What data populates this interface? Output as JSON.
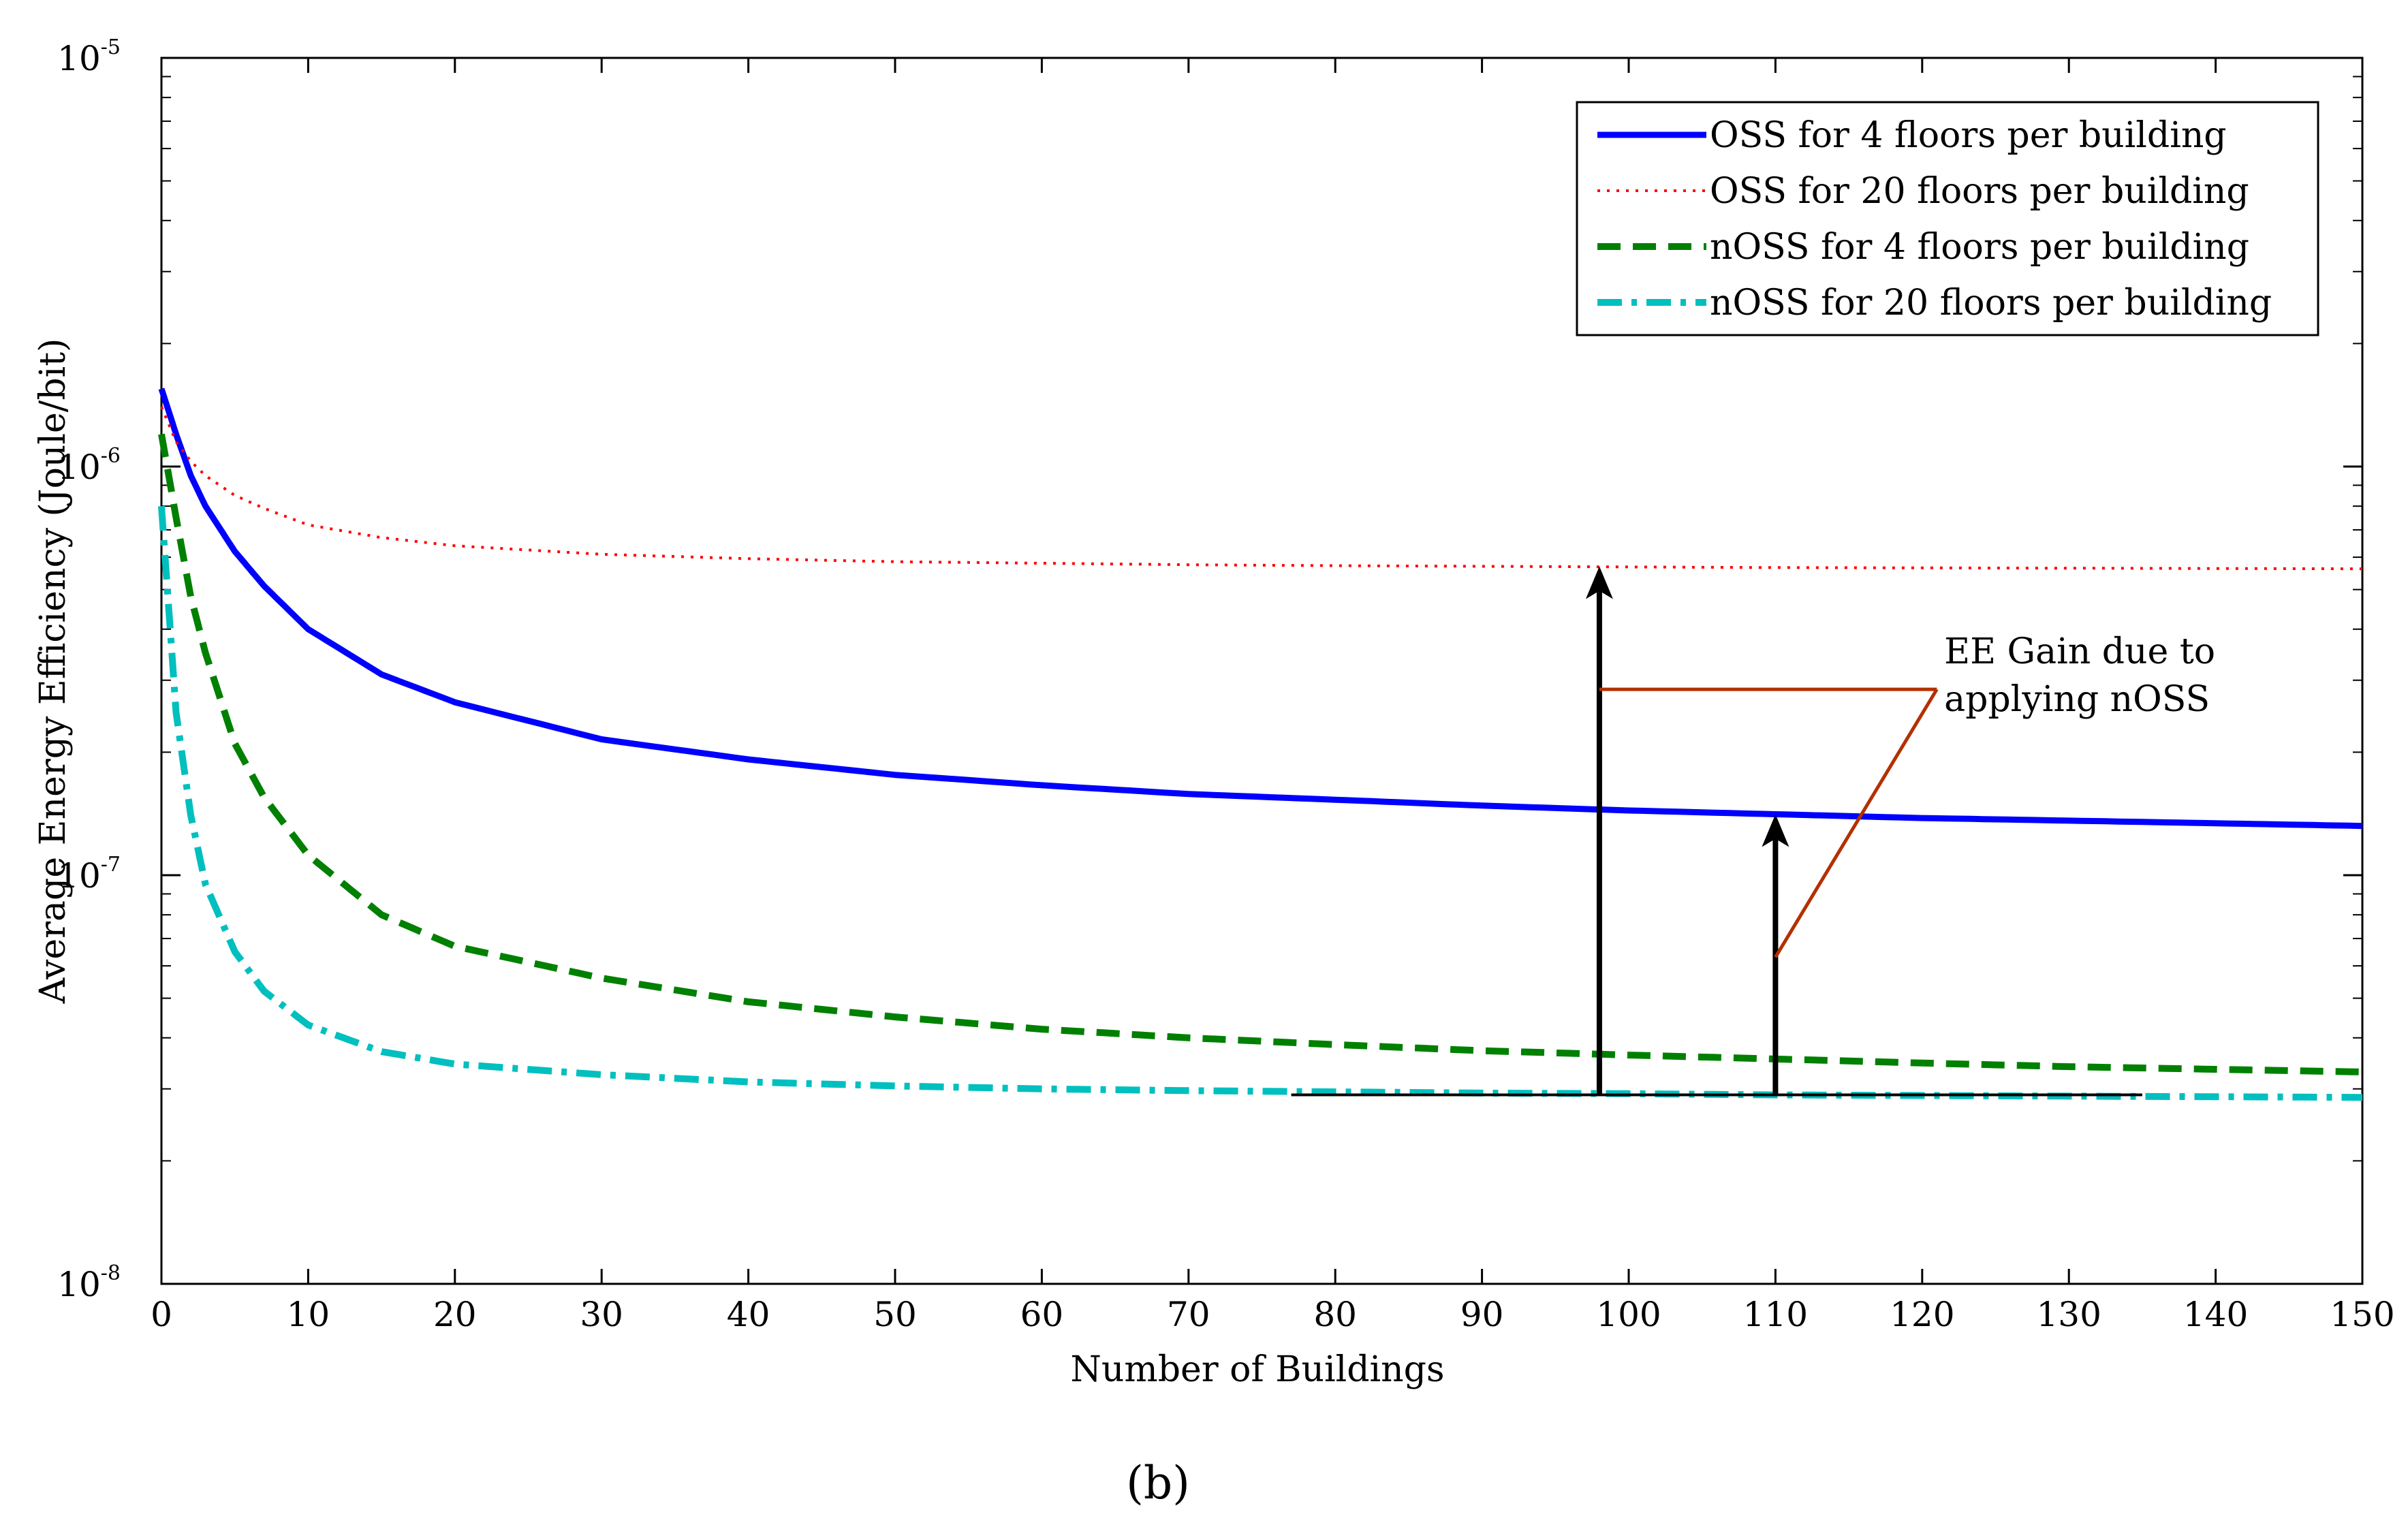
{
  "chart_data": {
    "type": "line",
    "title": "",
    "xlabel": "Number of Buildings",
    "ylabel": "Average Energy Efficiency (Joule/bit)",
    "yscale": "log",
    "xlim": [
      0,
      150
    ],
    "ylim": [
      1e-08,
      1e-05
    ],
    "x_ticks": [
      0,
      10,
      20,
      30,
      40,
      50,
      60,
      70,
      80,
      90,
      100,
      110,
      120,
      130,
      140,
      150
    ],
    "y_ticks": [
      {
        "value": 1e-08,
        "base": "10",
        "exp": "-8"
      },
      {
        "value": 1e-07,
        "base": "10",
        "exp": "-7"
      },
      {
        "value": 1e-06,
        "base": "10",
        "exp": "-6"
      },
      {
        "value": 1e-05,
        "base": "10",
        "exp": "-5"
      }
    ],
    "legend_position": "top-right",
    "series": [
      {
        "name": "OSS for 4 floors per building",
        "color": "#0000ff",
        "style": "solid",
        "x": [
          0,
          1,
          2,
          3,
          5,
          7,
          10,
          15,
          20,
          30,
          40,
          50,
          60,
          70,
          80,
          90,
          100,
          110,
          120,
          130,
          140,
          150
        ],
        "y": [
          1.55e-06,
          1.2e-06,
          9.5e-07,
          8e-07,
          6.2e-07,
          5.1e-07,
          4e-07,
          3.1e-07,
          2.65e-07,
          2.15e-07,
          1.92e-07,
          1.76e-07,
          1.66e-07,
          1.58e-07,
          1.53e-07,
          1.48e-07,
          1.44e-07,
          1.41e-07,
          1.38e-07,
          1.36e-07,
          1.34e-07,
          1.32e-07
        ]
      },
      {
        "name": "OSS for 20 floors per building",
        "color": "#ff0000",
        "style": "dotted",
        "x": [
          0,
          1,
          2,
          3,
          5,
          7,
          10,
          15,
          20,
          30,
          40,
          50,
          60,
          70,
          80,
          90,
          100,
          110,
          120,
          130,
          140,
          150
        ],
        "y": [
          1.4e-06,
          1.15e-06,
          1.03e-06,
          9.5e-07,
          8.5e-07,
          7.9e-07,
          7.2e-07,
          6.7e-07,
          6.4e-07,
          6.1e-07,
          5.95e-07,
          5.85e-07,
          5.8e-07,
          5.75e-07,
          5.72e-07,
          5.7e-07,
          5.68e-07,
          5.66e-07,
          5.65e-07,
          5.64e-07,
          5.63e-07,
          5.62e-07
        ]
      },
      {
        "name": "nOSS for 4 floors per building",
        "color": "#008000",
        "style": "dashed",
        "x": [
          0,
          1,
          2,
          3,
          5,
          7,
          10,
          15,
          20,
          30,
          40,
          50,
          60,
          70,
          80,
          90,
          100,
          110,
          120,
          130,
          140,
          150
        ],
        "y": [
          1.2e-06,
          7.5e-07,
          4.8e-07,
          3.5e-07,
          2.1e-07,
          1.55e-07,
          1.12e-07,
          8e-08,
          6.7e-08,
          5.6e-08,
          4.9e-08,
          4.5e-08,
          4.2e-08,
          4e-08,
          3.85e-08,
          3.72e-08,
          3.63e-08,
          3.55e-08,
          3.47e-08,
          3.4e-08,
          3.35e-08,
          3.3e-08
        ]
      },
      {
        "name": "nOSS for 20 floors per building",
        "color": "#00bfbf",
        "style": "dash-dot",
        "x": [
          0,
          1,
          2,
          3,
          5,
          7,
          10,
          15,
          20,
          30,
          40,
          50,
          60,
          70,
          80,
          90,
          100,
          110,
          120,
          130,
          140,
          150
        ],
        "y": [
          8e-07,
          2.5e-07,
          1.4e-07,
          9.5e-08,
          6.5e-08,
          5.2e-08,
          4.3e-08,
          3.7e-08,
          3.45e-08,
          3.25e-08,
          3.12e-08,
          3.05e-08,
          3e-08,
          2.97e-08,
          2.95e-08,
          2.93e-08,
          2.92e-08,
          2.9e-08,
          2.89e-08,
          2.88e-08,
          2.87e-08,
          2.86e-08
        ]
      }
    ],
    "annotations": {
      "gain_label_line1": "EE Gain due to",
      "gain_label_line2": "applying nOSS",
      "arrow1": {
        "x": 98,
        "y_from": 2.9e-08,
        "y_to": 5.7e-07
      },
      "arrow2": {
        "x": 110,
        "y_from": 2.9e-08,
        "y_to": 1.41e-07
      },
      "baseline": {
        "x_from": 77,
        "x_to": 135,
        "y": 2.9e-08
      },
      "callout_color": "#b33000"
    },
    "caption": "(b)"
  }
}
